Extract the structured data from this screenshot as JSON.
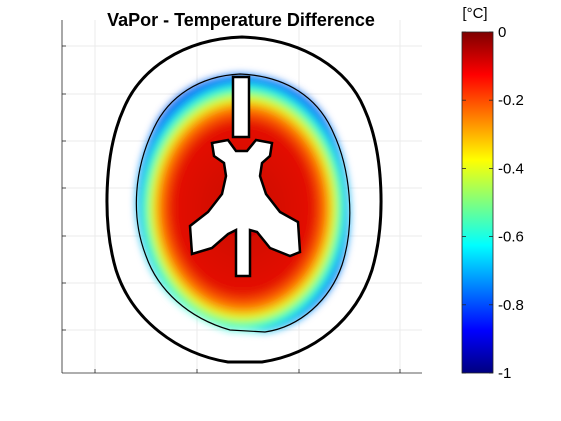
{
  "chart_data": {
    "type": "heatmap",
    "title": "VaPor - Temperature Difference",
    "xlabel": "",
    "ylabel": "",
    "grid": true,
    "legend": "colorbar-right",
    "colorbar": {
      "unit": "[°C]",
      "range": [
        -1,
        0
      ],
      "ticks": [
        0,
        -0.2,
        -0.4,
        -0.6,
        -0.8,
        -1
      ],
      "tick_labels": [
        "0",
        "-0.2",
        "-0.4",
        "-0.6",
        "-0.8",
        "-1"
      ],
      "colormap": "jet",
      "colors": [
        "#00007f",
        "#0000ff",
        "#007fff",
        "#00ffff",
        "#7fff7f",
        "#ffff00",
        "#ff7f00",
        "#ff0000",
        "#7f0000"
      ]
    },
    "regions": [
      {
        "name": "brain interior",
        "value_range": [
          -0.1,
          0
        ]
      },
      {
        "name": "brain periphery",
        "value_range": [
          -1,
          -0.5
        ]
      },
      {
        "name": "ventricles",
        "value": null
      },
      {
        "name": "scalp/skull contour",
        "value": null
      }
    ]
  }
}
